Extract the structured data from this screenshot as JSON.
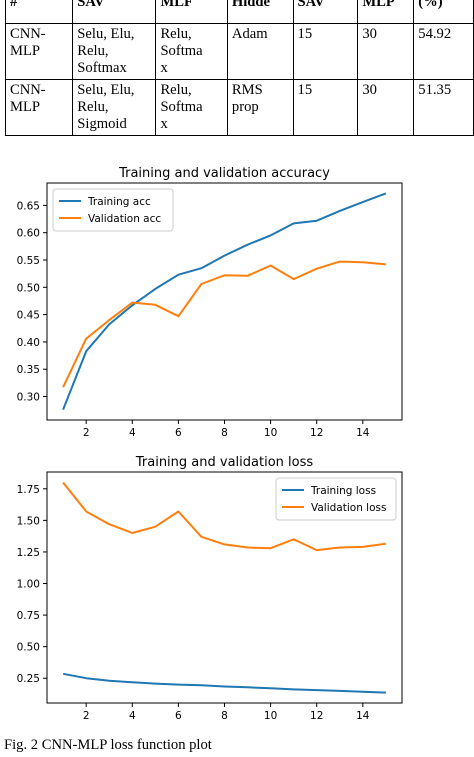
{
  "table": {
    "header": [
      "#",
      "SAV",
      "MLF",
      "Hidde",
      "SAV",
      "MLP",
      "(%)"
    ],
    "rows": [
      [
        "CNN-\nMLP",
        "Selu, Elu,\nRelu,\nSoftmax",
        "Relu,\nSoftma\nx",
        "Adam",
        "15",
        "30",
        "54.92"
      ],
      [
        "CNN-\nMLP",
        "Selu, Elu,\nRelu,\nSigmoid",
        "Relu,\nSoftma\nx",
        "RMS\nprop",
        "15",
        "30",
        "51.35"
      ]
    ]
  },
  "chart_data": [
    {
      "type": "line",
      "title": "Training and validation accuracy",
      "x": [
        1,
        2,
        3,
        4,
        5,
        6,
        7,
        8,
        9,
        10,
        11,
        12,
        13,
        14,
        15
      ],
      "series": [
        {
          "name": "Training acc",
          "color": "#1f77b4",
          "values": [
            0.276,
            0.383,
            0.432,
            0.467,
            0.497,
            0.523,
            0.535,
            0.558,
            0.578,
            0.595,
            0.617,
            0.622,
            0.64,
            0.656,
            0.672
          ]
        },
        {
          "name": "Validation acc",
          "color": "#ff7f0e",
          "values": [
            0.317,
            0.406,
            0.44,
            0.472,
            0.468,
            0.447,
            0.506,
            0.522,
            0.521,
            0.54,
            0.515,
            0.534,
            0.547,
            0.546,
            0.542
          ]
        }
      ],
      "xticks": [
        2,
        4,
        6,
        8,
        10,
        12,
        14
      ],
      "yticks": [
        0.3,
        0.35,
        0.4,
        0.45,
        0.5,
        0.55,
        0.6,
        0.65
      ],
      "ytick_labels": [
        "0.30",
        "0.35",
        "0.40",
        "0.45",
        "0.50",
        "0.55",
        "0.60",
        "0.65"
      ],
      "xlim": [
        0.3,
        15.7
      ],
      "ylim": [
        0.257,
        0.691
      ],
      "legend": "upper-left",
      "grid": false
    },
    {
      "type": "line",
      "title": "Training and validation loss",
      "x": [
        1,
        2,
        3,
        4,
        5,
        6,
        7,
        8,
        9,
        10,
        11,
        12,
        13,
        14,
        15
      ],
      "series": [
        {
          "name": "Training loss",
          "color": "#1f77b4",
          "values": [
            0.285,
            0.25,
            0.23,
            0.218,
            0.208,
            0.2,
            0.195,
            0.185,
            0.178,
            0.17,
            0.162,
            0.156,
            0.15,
            0.143,
            0.136
          ]
        },
        {
          "name": "Validation loss",
          "color": "#ff7f0e",
          "values": [
            1.8,
            1.57,
            1.47,
            1.4,
            1.45,
            1.57,
            1.37,
            1.31,
            1.285,
            1.28,
            1.35,
            1.265,
            1.285,
            1.29,
            1.315
          ]
        }
      ],
      "xticks": [
        2,
        4,
        6,
        8,
        10,
        12,
        14
      ],
      "yticks": [
        0.25,
        0.5,
        0.75,
        1.0,
        1.25,
        1.5,
        1.75
      ],
      "ytick_labels": [
        "0.25",
        "0.50",
        "0.75",
        "1.00",
        "1.25",
        "1.50",
        "1.75"
      ],
      "xlim": [
        0.3,
        15.7
      ],
      "ylim": [
        0.054,
        1.883
      ],
      "legend": "upper-right",
      "grid": false
    }
  ],
  "caption": "Fig. 2 CNN-MLP loss function plot"
}
